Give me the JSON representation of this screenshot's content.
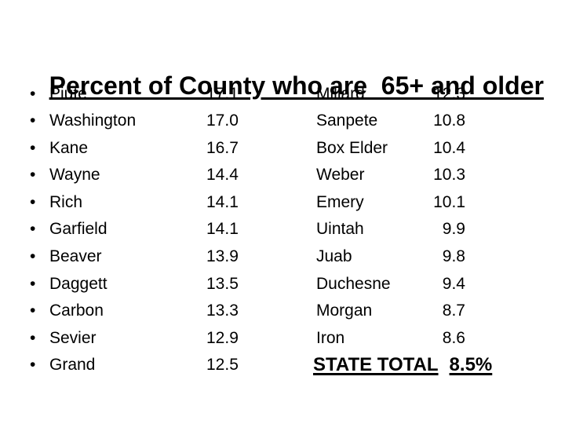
{
  "slide": {
    "title": "Percent of County who are  65+ and older",
    "bullet_glyph": "•",
    "left_column": [
      {
        "county": "Piute",
        "value": "17.1"
      },
      {
        "county": "Washington",
        "value": "17.0"
      },
      {
        "county": "Kane",
        "value": "16.7"
      },
      {
        "county": "Wayne",
        "value": "14.4"
      },
      {
        "county": "Rich",
        "value": "14.1"
      },
      {
        "county": "Garfield",
        "value": "14.1"
      },
      {
        "county": "Beaver",
        "value": "13.9"
      },
      {
        "county": "Daggett",
        "value": "13.5"
      },
      {
        "county": "Carbon",
        "value": "13.3"
      },
      {
        "county": "Sevier",
        "value": "12.9"
      },
      {
        "county": "Grand",
        "value": "12.5"
      }
    ],
    "right_column": [
      {
        "county": "Millard",
        "value": "12.3"
      },
      {
        "county": "Sanpete",
        "value": "10.8"
      },
      {
        "county": "Box Elder",
        "value": "10.4"
      },
      {
        "county": "Weber",
        "value": "10.3"
      },
      {
        "county": "Emery",
        "value": "10.1"
      },
      {
        "county": "Uintah",
        "value": "9.9"
      },
      {
        "county": "Juab",
        "value": "9.8"
      },
      {
        "county": "Duchesne",
        "value": "9.4"
      },
      {
        "county": "Morgan",
        "value": "8.7"
      },
      {
        "county": "Iron",
        "value": "8.6"
      }
    ],
    "state_total": {
      "label": "STATE TOTAL",
      "value": "8.5%"
    },
    "colors": {
      "background": "#ffffff",
      "text": "#000000"
    }
  }
}
